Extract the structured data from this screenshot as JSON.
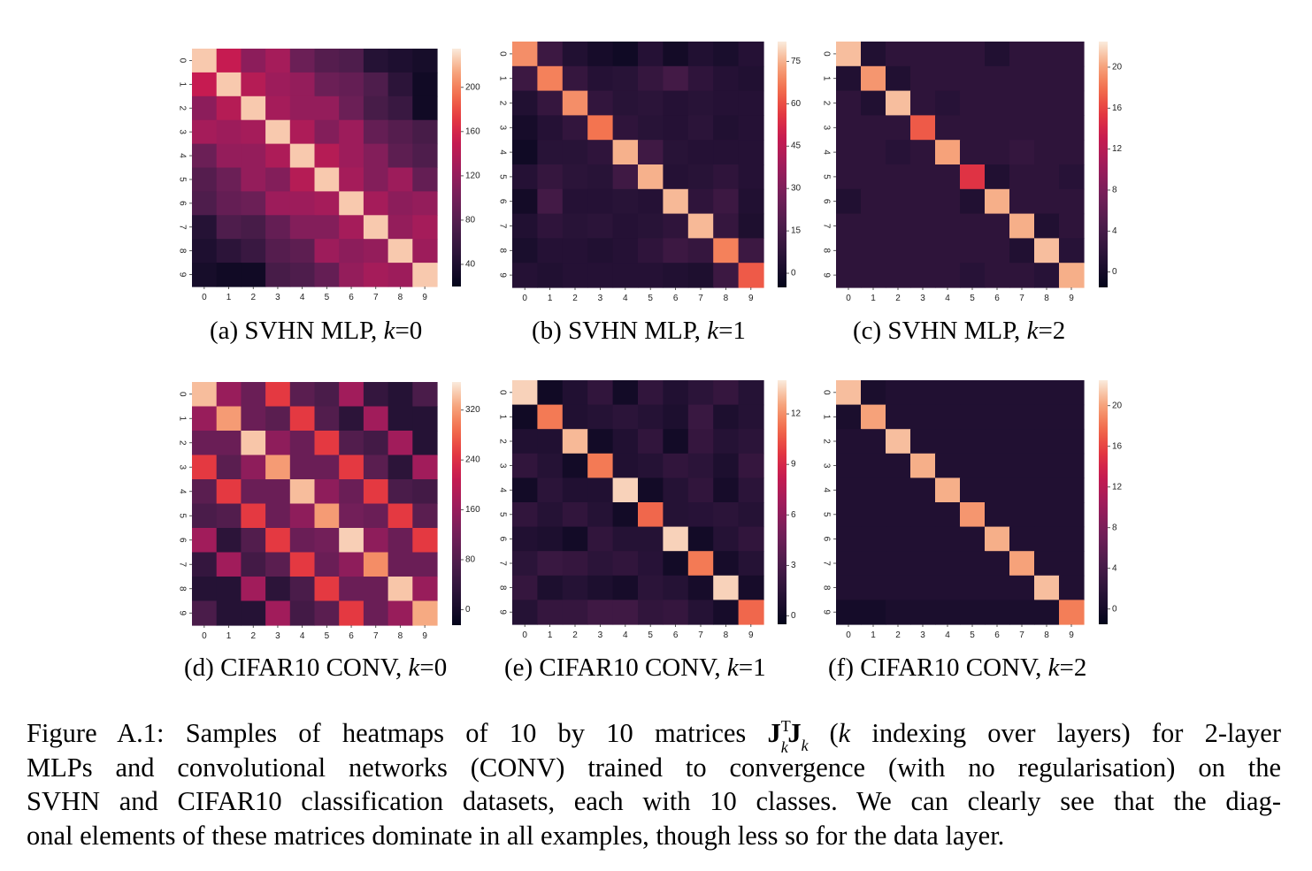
{
  "chart_data": [
    {
      "type": "heatmap",
      "caption": {
        "label": "(a)",
        "text": "SVHN MLP, ",
        "var": "k",
        "eq": "=0"
      },
      "x_ticks": [
        "0",
        "1",
        "2",
        "3",
        "4",
        "5",
        "6",
        "7",
        "8",
        "9"
      ],
      "y_ticks": [
        "0",
        "1",
        "2",
        "3",
        "4",
        "5",
        "6",
        "7",
        "8",
        "9"
      ],
      "colorbar": {
        "min": 20,
        "max": 235,
        "ticks": [
          40,
          80,
          120,
          160,
          200
        ]
      },
      "values": [
        [
          225,
          150,
          115,
          130,
          95,
          80,
          75,
          45,
          40,
          35
        ],
        [
          150,
          225,
          140,
          125,
          120,
          95,
          90,
          75,
          50,
          30
        ],
        [
          115,
          140,
          225,
          130,
          120,
          120,
          95,
          70,
          60,
          30
        ],
        [
          130,
          125,
          130,
          225,
          135,
          110,
          125,
          90,
          80,
          70
        ],
        [
          95,
          120,
          120,
          135,
          225,
          140,
          125,
          110,
          85,
          75
        ],
        [
          80,
          95,
          120,
          110,
          140,
          225,
          130,
          110,
          125,
          90
        ],
        [
          75,
          90,
          95,
          125,
          125,
          130,
          225,
          130,
          115,
          120
        ],
        [
          45,
          75,
          70,
          90,
          110,
          110,
          130,
          225,
          120,
          130
        ],
        [
          40,
          50,
          60,
          80,
          85,
          125,
          115,
          120,
          225,
          125
        ],
        [
          35,
          30,
          30,
          70,
          75,
          90,
          120,
          130,
          125,
          225
        ]
      ]
    },
    {
      "type": "heatmap",
      "caption": {
        "label": "(b)",
        "text": "SVHN MLP, ",
        "var": "k",
        "eq": "=1"
      },
      "x_ticks": [
        "0",
        "1",
        "2",
        "3",
        "4",
        "5",
        "6",
        "7",
        "8",
        "9"
      ],
      "y_ticks": [
        "0",
        "1",
        "2",
        "3",
        "4",
        "5",
        "6",
        "7",
        "8",
        "9"
      ],
      "colorbar": {
        "min": -5,
        "max": 82,
        "ticks": [
          0,
          15,
          30,
          45,
          60,
          75
        ]
      },
      "values": [
        [
          70,
          12,
          4,
          1,
          -1,
          5,
          0,
          4,
          2,
          5
        ],
        [
          12,
          68,
          10,
          5,
          6,
          10,
          14,
          8,
          5,
          4
        ],
        [
          4,
          10,
          70,
          9,
          6,
          7,
          5,
          6,
          5,
          5
        ],
        [
          1,
          5,
          9,
          66,
          8,
          6,
          5,
          7,
          4,
          5
        ],
        [
          -1,
          6,
          6,
          8,
          75,
          13,
          6,
          5,
          5,
          5
        ],
        [
          5,
          10,
          7,
          6,
          13,
          75,
          5,
          6,
          8,
          5
        ],
        [
          0,
          14,
          5,
          5,
          6,
          5,
          76,
          8,
          12,
          4
        ],
        [
          4,
          8,
          6,
          7,
          5,
          6,
          8,
          76,
          10,
          3
        ],
        [
          2,
          5,
          5,
          4,
          5,
          8,
          12,
          10,
          68,
          12
        ],
        [
          5,
          4,
          5,
          5,
          5,
          5,
          4,
          3,
          12,
          62
        ]
      ]
    },
    {
      "type": "heatmap",
      "caption": {
        "label": "(c)",
        "text": "SVHN MLP, ",
        "var": "k",
        "eq": "=2"
      },
      "x_ticks": [
        "0",
        "1",
        "2",
        "3",
        "4",
        "5",
        "6",
        "7",
        "8",
        "9"
      ],
      "y_ticks": [
        "0",
        "1",
        "2",
        "3",
        "4",
        "5",
        "6",
        "7",
        "8",
        "9"
      ],
      "colorbar": {
        "min": -1.5,
        "max": 22.5,
        "ticks": [
          0,
          4,
          8,
          12,
          16,
          20
        ]
      },
      "values": [
        [
          21,
          1,
          2,
          2,
          2,
          2,
          1,
          2,
          2,
          2
        ],
        [
          1,
          19.5,
          1,
          2,
          2,
          2,
          2,
          2,
          2,
          2
        ],
        [
          2,
          1,
          21,
          2,
          1.5,
          2,
          2,
          2,
          2,
          2
        ],
        [
          2,
          2,
          2,
          17,
          2,
          2,
          2,
          2,
          2,
          2
        ],
        [
          2,
          2,
          1.5,
          2,
          20,
          2,
          2,
          2.5,
          2,
          2
        ],
        [
          2,
          2,
          2,
          2,
          2,
          15,
          1,
          2,
          2,
          1.5
        ],
        [
          1,
          2,
          2,
          2,
          2,
          1,
          20.5,
          2,
          2,
          2
        ],
        [
          2,
          2,
          2,
          2,
          2,
          2,
          2,
          20.5,
          1,
          2
        ],
        [
          2,
          2,
          2,
          2,
          2,
          2,
          2,
          1,
          21,
          1.5
        ],
        [
          2,
          2,
          2,
          2,
          2,
          1.5,
          2,
          2,
          1.5,
          20.5
        ]
      ]
    },
    {
      "type": "heatmap",
      "caption": {
        "label": "(d)",
        "text": "CIFAR10 CONV, ",
        "var": "k",
        "eq": "=0"
      },
      "x_ticks": [
        "0",
        "1",
        "2",
        "3",
        "4",
        "5",
        "6",
        "7",
        "8",
        "9"
      ],
      "y_ticks": [
        "0",
        "1",
        "2",
        "3",
        "4",
        "5",
        "6",
        "7",
        "8",
        "9"
      ],
      "colorbar": {
        "min": -25,
        "max": 365,
        "ticks": [
          0,
          80,
          160,
          240,
          320
        ]
      },
      "values": [
        [
          340,
          160,
          110,
          250,
          90,
          70,
          170,
          40,
          20,
          70
        ],
        [
          160,
          320,
          110,
          90,
          250,
          80,
          30,
          170,
          20,
          20
        ],
        [
          110,
          110,
          345,
          150,
          110,
          250,
          80,
          60,
          170,
          20
        ],
        [
          250,
          90,
          150,
          320,
          110,
          110,
          250,
          90,
          30,
          170
        ],
        [
          90,
          250,
          110,
          110,
          340,
          150,
          110,
          250,
          70,
          60
        ],
        [
          70,
          80,
          250,
          110,
          150,
          320,
          120,
          110,
          250,
          90
        ],
        [
          170,
          30,
          80,
          250,
          110,
          120,
          350,
          150,
          110,
          250
        ],
        [
          40,
          170,
          60,
          90,
          250,
          110,
          150,
          310,
          110,
          110
        ],
        [
          20,
          20,
          170,
          30,
          70,
          250,
          110,
          110,
          345,
          160
        ],
        [
          70,
          20,
          20,
          170,
          60,
          90,
          250,
          110,
          160,
          330
        ]
      ]
    },
    {
      "type": "heatmap",
      "caption": {
        "label": "(e)",
        "text": "CIFAR10 CONV, ",
        "var": "k",
        "eq": "=1"
      },
      "x_ticks": [
        "0",
        "1",
        "2",
        "3",
        "4",
        "5",
        "6",
        "7",
        "8",
        "9"
      ],
      "y_ticks": [
        "0",
        "1",
        "2",
        "3",
        "4",
        "5",
        "6",
        "7",
        "8",
        "9"
      ],
      "colorbar": {
        "min": -0.5,
        "max": 14,
        "ticks": [
          0,
          3,
          6,
          9,
          12
        ]
      },
      "values": [
        [
          13.5,
          0.2,
          1,
          1.8,
          0.3,
          1.8,
          1,
          1.5,
          2,
          1.2
        ],
        [
          0.2,
          11.5,
          1,
          1.2,
          1.5,
          1.2,
          0.8,
          2.2,
          0.8,
          1.2
        ],
        [
          1,
          1,
          13,
          0.3,
          1,
          1.8,
          0.3,
          2,
          1.2,
          1.5
        ],
        [
          1.8,
          1.2,
          0.3,
          11.5,
          1,
          1.2,
          1.8,
          1.5,
          0.8,
          2
        ],
        [
          0.3,
          1.5,
          1,
          1,
          13.5,
          0.3,
          1.2,
          1.8,
          0.5,
          1.5
        ],
        [
          1.8,
          1.2,
          1.8,
          1.2,
          0.3,
          11,
          1.2,
          1.3,
          1.5,
          1.2
        ],
        [
          1,
          0.8,
          0.3,
          1.8,
          1.2,
          1.2,
          13.5,
          0.3,
          1.2,
          1.8
        ],
        [
          1.5,
          2.2,
          2,
          1.5,
          1.8,
          1.3,
          0.3,
          11.5,
          0.5,
          1.2
        ],
        [
          2,
          0.8,
          1.2,
          0.8,
          0.5,
          1.5,
          1.2,
          0.5,
          13.5,
          0.5
        ],
        [
          1.2,
          2,
          2,
          2.5,
          2.5,
          1.8,
          2,
          1.2,
          0.5,
          11
        ]
      ]
    },
    {
      "type": "heatmap",
      "caption": {
        "label": "(f)",
        "text": "CIFAR10 CONV, ",
        "var": "k",
        "eq": "=2"
      },
      "x_ticks": [
        "0",
        "1",
        "2",
        "3",
        "4",
        "5",
        "6",
        "7",
        "8",
        "9"
      ],
      "y_ticks": [
        "0",
        "1",
        "2",
        "3",
        "4",
        "5",
        "6",
        "7",
        "8",
        "9"
      ],
      "colorbar": {
        "min": -1.5,
        "max": 22.5,
        "ticks": [
          0,
          4,
          8,
          12,
          16,
          20
        ]
      },
      "values": [
        [
          21,
          0.5,
          1,
          1,
          1,
          1,
          1,
          1,
          1,
          1
        ],
        [
          0.5,
          20,
          1,
          1,
          1,
          1,
          1,
          1,
          1,
          1
        ],
        [
          1,
          1,
          21,
          1,
          1,
          1,
          1,
          1,
          1,
          1
        ],
        [
          1,
          1,
          1,
          20.5,
          1,
          1,
          1,
          1,
          1,
          1
        ],
        [
          1,
          1,
          1,
          1,
          20.5,
          1,
          1,
          1,
          1,
          1
        ],
        [
          1,
          1,
          1,
          1,
          1,
          19.5,
          1,
          1,
          1,
          1
        ],
        [
          1,
          1,
          1,
          1,
          1,
          1,
          20.5,
          1,
          1,
          1
        ],
        [
          1,
          1,
          1,
          1,
          1,
          1,
          1,
          20,
          1,
          1
        ],
        [
          1,
          1,
          1,
          1,
          1,
          1,
          1,
          1,
          21,
          1
        ],
        [
          0,
          0,
          0.5,
          0.5,
          0.5,
          0.5,
          0.5,
          0.5,
          0.5,
          18.5
        ]
      ]
    }
  ],
  "caption": {
    "lines": [
      [
        "Figure A.1: Samples of heatmaps of 10 by 10 matrices ",
        "J",
        "T",
        "k",
        "J",
        "k",
        " (",
        "k",
        " indexing over layers) for 2-layer"
      ],
      [
        "MLPs and convolutional networks (CONV) trained to convergence (with no regularisation) on the"
      ],
      [
        "SVHN and CIFAR10 classification datasets, each with 10 classes. We can clearly see that the diag-"
      ],
      [
        "onal elements of these matrices dominate in all examples, though less so for the data layer."
      ]
    ]
  }
}
